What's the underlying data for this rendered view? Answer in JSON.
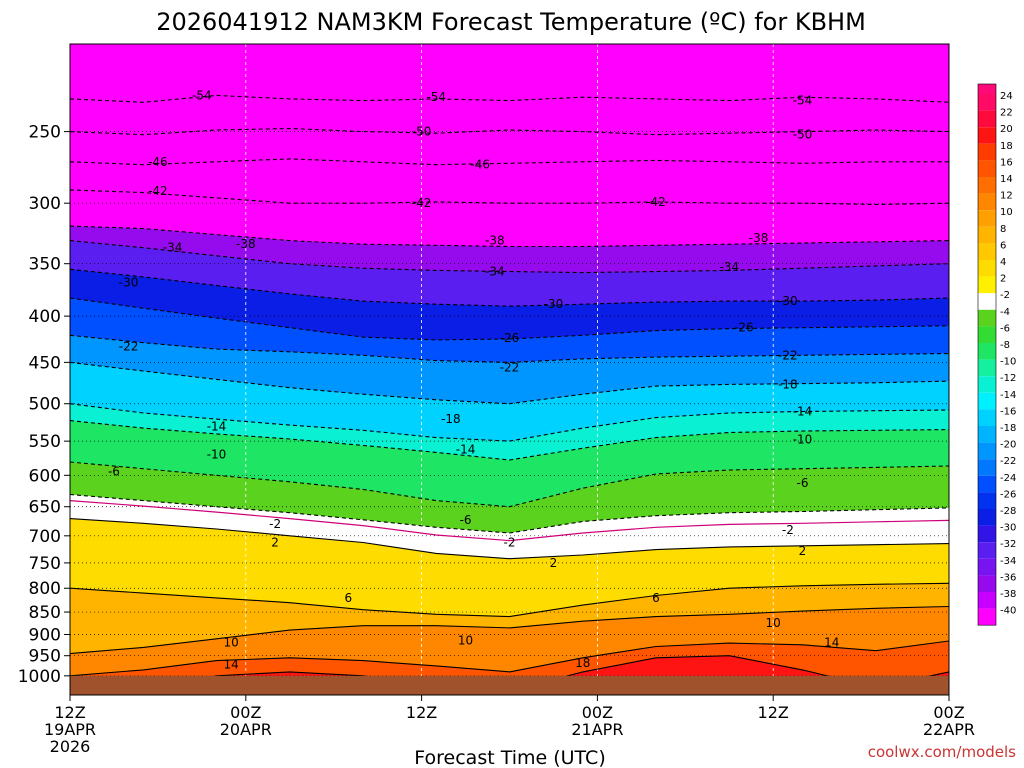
{
  "chart_data": {
    "type": "heatmap",
    "title": "2026041912 NAM3KM Forecast Temperature (ºC) for KBHM",
    "xlabel": "Forecast Time (UTC)",
    "ylabel": "",
    "credit": "coolwx.com/models",
    "x_hours_range": [
      0,
      60
    ],
    "y_scale": "log",
    "y_range_hpa": [
      1050,
      200
    ],
    "y_ticks": [
      250,
      300,
      350,
      400,
      450,
      500,
      550,
      600,
      650,
      700,
      750,
      800,
      850,
      900,
      950,
      1000
    ],
    "y_tick_labels": [
      "250",
      "300",
      "350",
      "400",
      "450",
      "500",
      "550",
      "600",
      "650",
      "700",
      "750",
      "800",
      "850",
      "900",
      "950",
      "1000"
    ],
    "x_ticks": [
      {
        "hour": 0,
        "lines": [
          "12Z",
          "19APR",
          "2026"
        ]
      },
      {
        "hour": 12,
        "lines": [
          "00Z",
          "20APR"
        ]
      },
      {
        "hour": 24,
        "lines": [
          "12Z"
        ]
      },
      {
        "hour": 36,
        "lines": [
          "00Z",
          "21APR"
        ]
      },
      {
        "hour": 48,
        "lines": [
          "12Z"
        ]
      },
      {
        "hour": 60,
        "lines": [
          "00Z",
          "22APR"
        ]
      }
    ],
    "colorbar": {
      "ticks": [
        "24",
        "22",
        "20",
        "18",
        "16",
        "14",
        "12",
        "10",
        "8",
        "6",
        "4",
        "2",
        "-2",
        "-4",
        "-6",
        "-8",
        "-10",
        "-12",
        "-14",
        "-16",
        "-18",
        "-20",
        "-22",
        "-24",
        "-26",
        "-28",
        "-30",
        "-32",
        "-34",
        "-36",
        "-38",
        "-40"
      ],
      "colors": [
        "#ff0a64",
        "#ff0a3c",
        "#ff1414",
        "#ff3c00",
        "#ff5500",
        "#ff6e00",
        "#ff8700",
        "#ffa000",
        "#ffb400",
        "#ffc800",
        "#ffdc00",
        "#fff000",
        "#ffffff",
        "#5ad21e",
        "#32dc32",
        "#1ee664",
        "#14f0a0",
        "#0af0d2",
        "#00f0ff",
        "#00d2ff",
        "#00b4ff",
        "#0096ff",
        "#0078ff",
        "#0050ff",
        "#0032f0",
        "#0a1ee6",
        "#3214e6",
        "#5a1ef0",
        "#7814f0",
        "#960aee",
        "#c800ff",
        "#ff00ff"
      ],
      "legend_top_color": "#ff0a78"
    },
    "isotherm_levels": [
      -54,
      -50,
      -46,
      -42,
      -38,
      -34,
      -30,
      -26,
      -22,
      -18,
      -14,
      -10,
      -6,
      -2,
      2,
      6,
      10,
      14,
      18
    ],
    "isotherm_profile": [
      {
        "level": -54,
        "pressure_hpa": [
          230,
          232,
          228,
          230,
          231,
          230,
          231,
          229,
          230,
          231,
          229,
          230,
          232
        ]
      },
      {
        "level": -50,
        "pressure_hpa": [
          250,
          252,
          249,
          248,
          250,
          251,
          249,
          250,
          252,
          251,
          250,
          249,
          250
        ]
      },
      {
        "level": -46,
        "pressure_hpa": [
          270,
          272,
          270,
          268,
          270,
          272,
          271,
          270,
          269,
          270,
          271,
          270,
          270
        ]
      },
      {
        "level": -42,
        "pressure_hpa": [
          290,
          292,
          296,
          300,
          300,
          299,
          300,
          300,
          299,
          300,
          300,
          301,
          300
        ]
      },
      {
        "level": -38,
        "pressure_hpa": [
          318,
          320,
          325,
          330,
          333,
          334,
          335,
          335,
          334,
          333,
          332,
          331,
          330
        ]
      },
      {
        "level": -34,
        "pressure_hpa": [
          330,
          336,
          343,
          350,
          354,
          356,
          357,
          358,
          357,
          356,
          354,
          352,
          350
        ]
      },
      {
        "level": -30,
        "pressure_hpa": [
          355,
          362,
          370,
          378,
          385,
          388,
          390,
          388,
          386,
          385,
          385,
          384,
          382
        ]
      },
      {
        "level": -26,
        "pressure_hpa": [
          382,
          392,
          402,
          412,
          422,
          425,
          424,
          420,
          415,
          413,
          412,
          411,
          410
        ]
      },
      {
        "level": -22,
        "pressure_hpa": [
          420,
          428,
          435,
          438,
          442,
          448,
          450,
          446,
          444,
          443,
          442,
          441,
          440
        ]
      },
      {
        "level": -18,
        "pressure_hpa": [
          450,
          460,
          470,
          480,
          488,
          495,
          500,
          488,
          478,
          476,
          475,
          474,
          472
        ]
      },
      {
        "level": -14,
        "pressure_hpa": [
          500,
          512,
          520,
          528,
          535,
          545,
          550,
          532,
          518,
          512,
          510,
          509,
          508
        ]
      },
      {
        "level": -10,
        "pressure_hpa": [
          522,
          532,
          540,
          547,
          556,
          566,
          577,
          560,
          545,
          538,
          536,
          535,
          534
        ]
      },
      {
        "level": -6,
        "pressure_hpa": [
          580,
          590,
          600,
          610,
          622,
          640,
          650,
          620,
          598,
          592,
          590,
          588,
          586
        ]
      },
      {
        "level": -2,
        "pressure_hpa": [
          630,
          640,
          650,
          660,
          672,
          685,
          695,
          675,
          665,
          660,
          658,
          655,
          652
        ]
      },
      {
        "level": 2,
        "pressure_hpa": [
          670,
          678,
          688,
          700,
          712,
          732,
          742,
          735,
          725,
          720,
          718,
          716,
          714
        ]
      },
      {
        "level": 6,
        "pressure_hpa": [
          800,
          810,
          820,
          830,
          845,
          855,
          860,
          835,
          815,
          800,
          795,
          792,
          790
        ]
      },
      {
        "level": 10,
        "pressure_hpa": [
          945,
          930,
          910,
          890,
          880,
          880,
          885,
          870,
          860,
          855,
          848,
          842,
          838
        ]
      },
      {
        "level": 14,
        "pressure_hpa": [
          1000,
          985,
          962,
          955,
          962,
          975,
          990,
          955,
          928,
          920,
          924,
          938,
          915
        ]
      },
      {
        "level": 18,
        "pressure_hpa": [
          1050,
          1040,
          1000,
          990,
          1000,
          1030,
          1040,
          990,
          955,
          950,
          985,
          1030,
          990
        ]
      }
    ],
    "contour_labels": [
      {
        "text": "-54",
        "hour": 9,
        "p": 228
      },
      {
        "text": "-54",
        "hour": 25,
        "p": 229
      },
      {
        "text": "-54",
        "hour": 50,
        "p": 231
      },
      {
        "text": "-50",
        "hour": 24,
        "p": 250
      },
      {
        "text": "-50",
        "hour": 50,
        "p": 252
      },
      {
        "text": "-46",
        "hour": 6,
        "p": 270
      },
      {
        "text": "-46",
        "hour": 28,
        "p": 272
      },
      {
        "text": "-42",
        "hour": 6,
        "p": 291
      },
      {
        "text": "-42",
        "hour": 24,
        "p": 300
      },
      {
        "text": "-42",
        "hour": 40,
        "p": 299
      },
      {
        "text": "-38",
        "hour": 12,
        "p": 333
      },
      {
        "text": "-38",
        "hour": 29,
        "p": 330
      },
      {
        "text": "-38",
        "hour": 47,
        "p": 328
      },
      {
        "text": "-34",
        "hour": 7,
        "p": 336
      },
      {
        "text": "-34",
        "hour": 29,
        "p": 357
      },
      {
        "text": "-34",
        "hour": 45,
        "p": 353
      },
      {
        "text": "-30",
        "hour": 4,
        "p": 367
      },
      {
        "text": "-30",
        "hour": 33,
        "p": 388
      },
      {
        "text": "-30",
        "hour": 49,
        "p": 385
      },
      {
        "text": "-26",
        "hour": 30,
        "p": 423
      },
      {
        "text": "-26",
        "hour": 46,
        "p": 412
      },
      {
        "text": "-22",
        "hour": 4,
        "p": 432
      },
      {
        "text": "-22",
        "hour": 30,
        "p": 456
      },
      {
        "text": "-22",
        "hour": 49,
        "p": 442
      },
      {
        "text": "-18",
        "hour": 26,
        "p": 520
      },
      {
        "text": "-18",
        "hour": 49,
        "p": 476
      },
      {
        "text": "-14",
        "hour": 10,
        "p": 530
      },
      {
        "text": "-14",
        "hour": 27,
        "p": 562
      },
      {
        "text": "-14",
        "hour": 50,
        "p": 510
      },
      {
        "text": "-10",
        "hour": 10,
        "p": 569
      },
      {
        "text": "-10",
        "hour": 50,
        "p": 548
      },
      {
        "text": "-6",
        "hour": 3,
        "p": 594
      },
      {
        "text": "-6",
        "hour": 27,
        "p": 672
      },
      {
        "text": "-6",
        "hour": 50,
        "p": 612
      },
      {
        "text": "-2",
        "hour": 14,
        "p": 679
      },
      {
        "text": "-2",
        "hour": 30,
        "p": 712
      },
      {
        "text": "-2",
        "hour": 49,
        "p": 690
      },
      {
        "text": "2",
        "hour": 14,
        "p": 712
      },
      {
        "text": "2",
        "hour": 33,
        "p": 750
      },
      {
        "text": "2",
        "hour": 50,
        "p": 728
      },
      {
        "text": "6",
        "hour": 19,
        "p": 820
      },
      {
        "text": "6",
        "hour": 40,
        "p": 820
      },
      {
        "text": "10",
        "hour": 11,
        "p": 918
      },
      {
        "text": "10",
        "hour": 27,
        "p": 914
      },
      {
        "text": "10",
        "hour": 48,
        "p": 874
      },
      {
        "text": "14",
        "hour": 11,
        "p": 972
      },
      {
        "text": "14",
        "hour": 52,
        "p": 918
      },
      {
        "text": "18",
        "hour": 35,
        "p": 968
      }
    ],
    "surface_pressure_hpa": 1000,
    "grid": true
  }
}
